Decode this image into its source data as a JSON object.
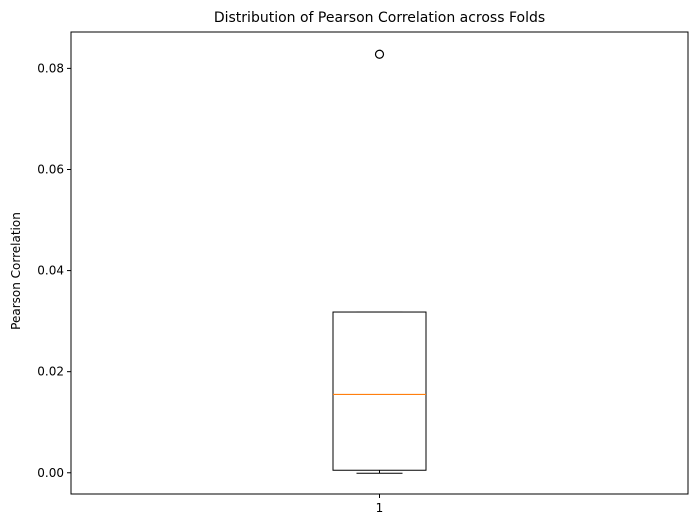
{
  "chart_data": {
    "type": "box",
    "title": "Distribution of Pearson Correlation across Folds",
    "xlabel": "",
    "ylabel": "Pearson Correlation",
    "categories": [
      "1"
    ],
    "yticks": [
      "0.00",
      "0.02",
      "0.04",
      "0.06",
      "0.08"
    ],
    "ylim": [
      -0.0042,
      0.0872
    ],
    "grid": false,
    "boxes": [
      {
        "category": "1",
        "whisker_low": -0.0001,
        "q1": 0.0005,
        "median": 0.0155,
        "q3": 0.0318,
        "whisker_high": 0.0318,
        "outliers": [
          0.0828
        ]
      }
    ],
    "colors": {
      "box": "#000000",
      "median": "#ff7f0e",
      "outlier": "#000000"
    }
  }
}
